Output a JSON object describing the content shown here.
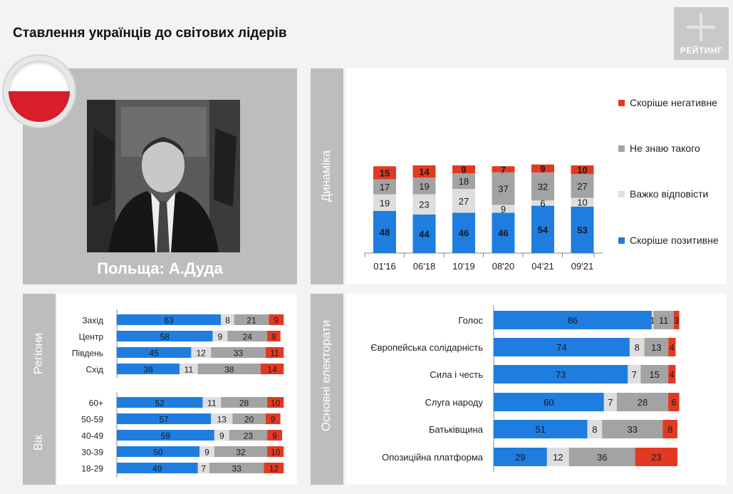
{
  "title": "Ставлення українців до світових лідерів",
  "logo": {
    "text": "РЕЙТИНГ"
  },
  "leader": {
    "caption": "Польща: А.Дуда"
  },
  "icons": {
    "flag": "poland-flag-icon",
    "photo": "leader-portrait-photo"
  },
  "colors": {
    "positive": "#1f7ddf",
    "hard": "#dedede",
    "unknown": "#a3a3a3",
    "negative": "#e23a22"
  },
  "labels": {
    "dynamics": "Динаміка",
    "regions": "Регіони",
    "age": "Вік",
    "electorates": "Основні електорати"
  },
  "chart_data": [
    {
      "type": "bar",
      "stacked": true,
      "orientation": "vertical",
      "categories": [
        "01'16",
        "06'18",
        "10'19",
        "08'20",
        "04'21",
        "09'21"
      ],
      "series": [
        {
          "name": "Скоріше позитивне",
          "values": [
            48,
            44,
            46,
            46,
            54,
            53
          ]
        },
        {
          "name": "Важко відповісти",
          "values": [
            19,
            23,
            27,
            9,
            6,
            10
          ]
        },
        {
          "name": "Не знаю такого",
          "values": [
            17,
            19,
            18,
            37,
            32,
            27
          ]
        },
        {
          "name": "Скоріше негативне",
          "values": [
            15,
            14,
            9,
            7,
            9,
            10
          ]
        }
      ],
      "legend": "right"
    },
    {
      "type": "bar",
      "stacked": true,
      "orientation": "horizontal",
      "groups": [
        {
          "categories": [
            "Захід",
            "Центр",
            "Південь",
            "Схід"
          ]
        },
        {
          "categories": [
            "60+",
            "50-59",
            "40-49",
            "30-39",
            "18-29"
          ]
        }
      ],
      "series": [
        {
          "name": "Скоріше позитивне",
          "values": [
            63,
            58,
            45,
            38,
            52,
            57,
            59,
            50,
            49
          ]
        },
        {
          "name": "Важко відповісти",
          "values": [
            8,
            9,
            12,
            11,
            11,
            13,
            9,
            9,
            7
          ]
        },
        {
          "name": "Не знаю такого",
          "values": [
            21,
            24,
            33,
            38,
            28,
            20,
            23,
            32,
            33
          ]
        },
        {
          "name": "Скоріше негативне",
          "values": [
            9,
            8,
            11,
            14,
            10,
            9,
            9,
            10,
            12
          ]
        }
      ]
    },
    {
      "type": "bar",
      "stacked": true,
      "orientation": "horizontal",
      "categories": [
        "Голос",
        "Європейська солідарність",
        "Сила і честь",
        "Слуга народу",
        "Батьківщина",
        "Опозиційна платформа"
      ],
      "series": [
        {
          "name": "Скоріше позитивне",
          "values": [
            86,
            74,
            73,
            60,
            51,
            29
          ]
        },
        {
          "name": "Важко відповісти",
          "values": [
            1,
            8,
            7,
            7,
            8,
            12
          ]
        },
        {
          "name": "Не знаю такого",
          "values": [
            11,
            13,
            15,
            28,
            33,
            36
          ]
        },
        {
          "name": "Скоріше негативне",
          "values": [
            3,
            4,
            4,
            6,
            8,
            23
          ]
        }
      ]
    }
  ]
}
